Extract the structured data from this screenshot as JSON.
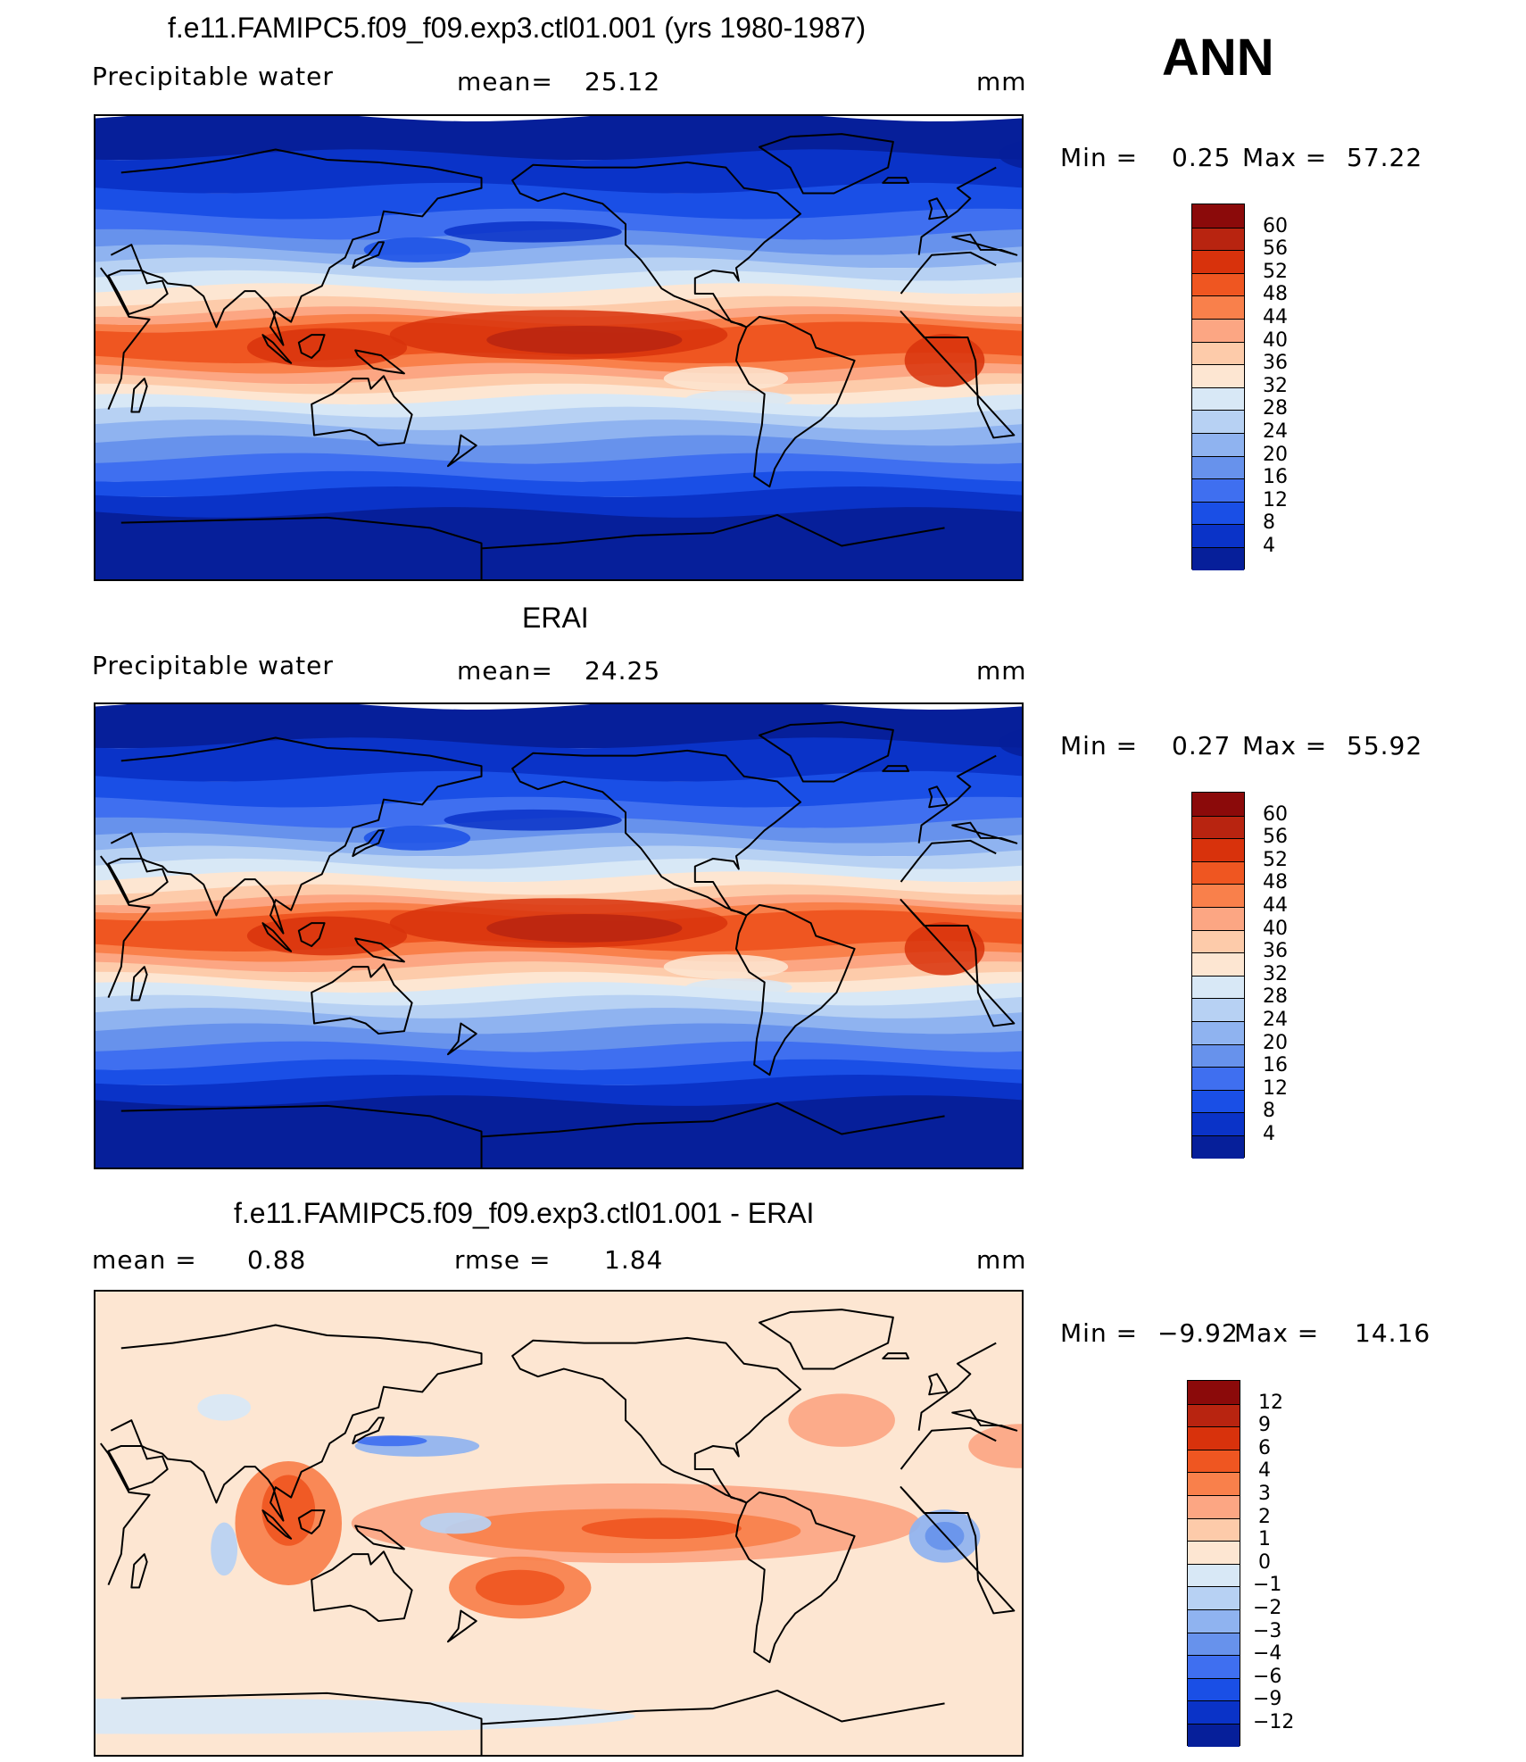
{
  "season": "ANN",
  "panels": [
    {
      "title": "f.e11.FAMIPC5.f09_f09.exp3.ctl01.001 (yrs 1980-1987)",
      "left_label": "Precipitable  water",
      "mid_label": "mean=",
      "mid_value": "25.12",
      "right_label": "mm",
      "min_label": "Min  =",
      "min_value": "0.25",
      "max_label": "Max  =",
      "max_value": "57.22",
      "colorbar": {
        "ticks": [
          "60",
          "56",
          "52",
          "48",
          "44",
          "40",
          "36",
          "32",
          "28",
          "24",
          "20",
          "16",
          "12",
          "8",
          "4"
        ],
        "colors": [
          "#8b0a0a",
          "#b82410",
          "#d8320c",
          "#ef5621",
          "#f9804b",
          "#fca683",
          "#fdcbaa",
          "#fde6d2",
          "#d8e8f6",
          "#b7d1f3",
          "#8fb3f0",
          "#6792ec",
          "#3f6ff0",
          "#1a4fe6",
          "#0a33c8",
          "#061f9a"
        ]
      },
      "map_style": "model"
    },
    {
      "title": "ERAI",
      "left_label": "Precipitable  water",
      "mid_label": "mean=",
      "mid_value": "24.25",
      "right_label": "mm",
      "min_label": "Min  =",
      "min_value": "0.27",
      "max_label": "Max  =",
      "max_value": "55.92",
      "colorbar": {
        "ticks": [
          "60",
          "56",
          "52",
          "48",
          "44",
          "40",
          "36",
          "32",
          "28",
          "24",
          "20",
          "16",
          "12",
          "8",
          "4"
        ],
        "colors": [
          "#8b0a0a",
          "#b82410",
          "#d8320c",
          "#ef5621",
          "#f9804b",
          "#fca683",
          "#fdcbaa",
          "#fde6d2",
          "#d8e8f6",
          "#b7d1f3",
          "#8fb3f0",
          "#6792ec",
          "#3f6ff0",
          "#1a4fe6",
          "#0a33c8",
          "#061f9a"
        ]
      },
      "map_style": "obs"
    },
    {
      "title": "f.e11.FAMIPC5.f09_f09.exp3.ctl01.001 - ERAI",
      "left_label": "mean  =",
      "left_value": "0.88",
      "mid_label": "rmse  =",
      "mid_value": "1.84",
      "right_label": "mm",
      "min_label": "Min  =",
      "min_value": "−9.92",
      "max_label": "Max  =",
      "max_value": "14.16",
      "colorbar": {
        "ticks": [
          "12",
          "9",
          "6",
          "4",
          "3",
          "2",
          "1",
          "0",
          "−1",
          "−2",
          "−3",
          "−4",
          "−6",
          "−9",
          "−12"
        ],
        "colors": [
          "#8b0a0a",
          "#b82410",
          "#d8320c",
          "#ef5621",
          "#f9804b",
          "#fca683",
          "#fdcbaa",
          "#fde6d2",
          "#d8e8f6",
          "#b7d1f3",
          "#8fb3f0",
          "#6792ec",
          "#3f6ff0",
          "#1a4fe6",
          "#0a33c8",
          "#061f9a"
        ]
      },
      "map_style": "diff"
    }
  ]
}
